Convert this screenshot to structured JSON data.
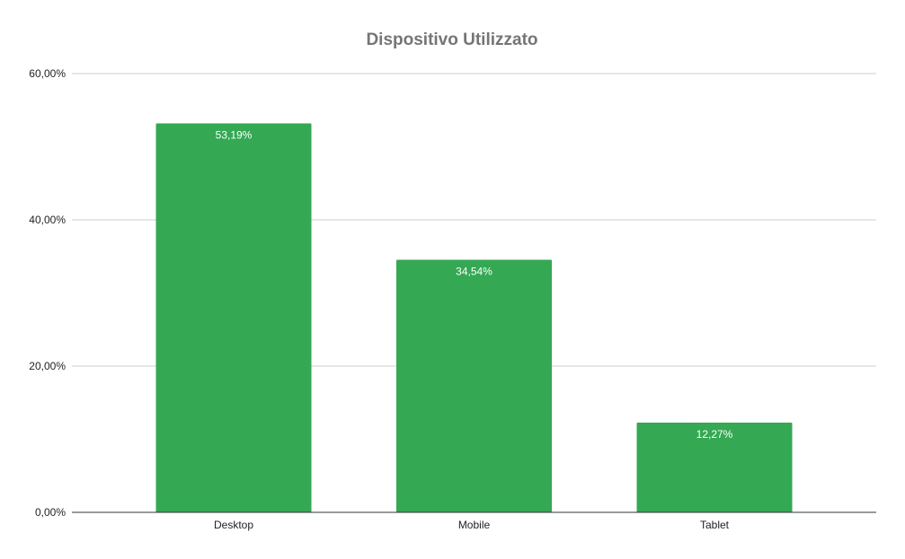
{
  "chart_data": {
    "type": "bar",
    "title": "Dispositivo Utilizzato",
    "xlabel": "",
    "ylabel": "",
    "categories": [
      "Desktop",
      "Mobile",
      "Tablet"
    ],
    "values": [
      53.19,
      34.54,
      12.27
    ],
    "data_labels": [
      "53,19%",
      "34,54%",
      "12,27%"
    ],
    "y_ticks": [
      0,
      20,
      40,
      60
    ],
    "y_tick_labels": [
      "0,00%",
      "20,00%",
      "40,00%",
      "60,00%"
    ],
    "ylim": [
      0,
      60
    ],
    "grid": true,
    "legend": "none",
    "bar_color": "#34a853"
  }
}
